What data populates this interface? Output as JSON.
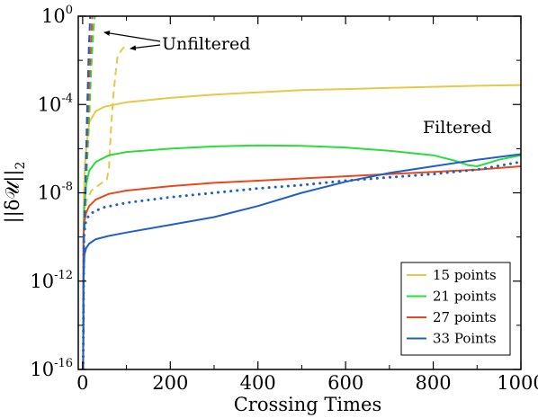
{
  "chart_data": {
    "type": "line",
    "xlabel": "Crossing Times",
    "ylabel": "||δ𝒰||",
    "ylabel_subscript": "2",
    "xlim": [
      -10,
      1000
    ],
    "ylim_log10": [
      -16,
      0
    ],
    "y_scale": "log",
    "x_ticks": [
      {
        "value": 0,
        "label": "0"
      },
      {
        "value": 200,
        "label": "200"
      },
      {
        "value": 400,
        "label": "400"
      },
      {
        "value": 600,
        "label": "600"
      },
      {
        "value": 800,
        "label": "800"
      },
      {
        "value": 1000,
        "label": "1000"
      }
    ],
    "y_ticks": [
      {
        "log10": 0,
        "base": "10",
        "exp": "0"
      },
      {
        "log10": -4,
        "base": "10",
        "exp": "-4"
      },
      {
        "log10": -8,
        "base": "10",
        "exp": "-8"
      },
      {
        "log10": -12,
        "base": "10",
        "exp": "-12"
      },
      {
        "log10": -16,
        "base": "10",
        "exp": "-16"
      }
    ],
    "legend_position": "bottom-right",
    "annotations": [
      {
        "text": "Unfiltered",
        "x": 180,
        "log10y": -1.2
      },
      {
        "text": "Filtered",
        "x": 800,
        "log10y": -5.4
      }
    ],
    "series": [
      {
        "name": "15 points",
        "color": "#e6c84a",
        "style": "solid",
        "points": [
          [
            1,
            -16
          ],
          [
            2,
            -10
          ],
          [
            3,
            -8.2
          ],
          [
            5,
            -6.8
          ],
          [
            8,
            -6.0
          ],
          [
            15,
            -4.8
          ],
          [
            30,
            -4.3
          ],
          [
            50,
            -4.1
          ],
          [
            100,
            -3.9
          ],
          [
            200,
            -3.7
          ],
          [
            300,
            -3.55
          ],
          [
            400,
            -3.45
          ],
          [
            500,
            -3.35
          ],
          [
            600,
            -3.3
          ],
          [
            700,
            -3.25
          ],
          [
            800,
            -3.2
          ],
          [
            900,
            -3.15
          ],
          [
            1000,
            -3.12
          ]
        ]
      },
      {
        "name": "15 points unfiltered",
        "color": "#e6c84a",
        "style": "dashed",
        "points": [
          [
            1,
            -16
          ],
          [
            3,
            -10
          ],
          [
            8,
            -8.4
          ],
          [
            20,
            -7.9
          ],
          [
            40,
            -7.6
          ],
          [
            55,
            -7.4
          ],
          [
            60,
            -6.9
          ],
          [
            65,
            -5.0
          ],
          [
            70,
            -3.6
          ],
          [
            75,
            -2.6
          ],
          [
            80,
            -1.8
          ],
          [
            90,
            -1.5
          ],
          [
            100,
            -1.3
          ]
        ]
      },
      {
        "name": "21 points",
        "color": "#2bdc3b",
        "style": "solid",
        "points": [
          [
            1,
            -16
          ],
          [
            2,
            -10
          ],
          [
            4,
            -8.6
          ],
          [
            8,
            -7.6
          ],
          [
            15,
            -7.0
          ],
          [
            30,
            -6.6
          ],
          [
            60,
            -6.3
          ],
          [
            100,
            -6.15
          ],
          [
            200,
            -6.0
          ],
          [
            300,
            -5.9
          ],
          [
            400,
            -5.85
          ],
          [
            500,
            -5.87
          ],
          [
            600,
            -5.95
          ],
          [
            700,
            -6.1
          ],
          [
            800,
            -6.3
          ],
          [
            850,
            -6.55
          ],
          [
            880,
            -6.75
          ],
          [
            900,
            -6.8
          ],
          [
            950,
            -6.5
          ],
          [
            1000,
            -6.3
          ]
        ]
      },
      {
        "name": "21 points unfiltered",
        "color": "#2bdc3b",
        "style": "dashed",
        "points": [
          [
            1,
            -16
          ],
          [
            3,
            -9.5
          ],
          [
            8,
            -7.6
          ],
          [
            15,
            -4.5
          ],
          [
            20,
            -2.2
          ],
          [
            25,
            -0.5
          ],
          [
            28,
            0
          ]
        ]
      },
      {
        "name": "27 points",
        "color": "#e8491c",
        "style": "solid",
        "points": [
          [
            1,
            -16
          ],
          [
            2,
            -10
          ],
          [
            4,
            -9.3
          ],
          [
            8,
            -8.9
          ],
          [
            15,
            -8.6
          ],
          [
            30,
            -8.3
          ],
          [
            60,
            -8.05
          ],
          [
            100,
            -7.9
          ],
          [
            200,
            -7.7
          ],
          [
            300,
            -7.55
          ],
          [
            400,
            -7.45
          ],
          [
            500,
            -7.35
          ],
          [
            600,
            -7.25
          ],
          [
            700,
            -7.15
          ],
          [
            800,
            -7.05
          ],
          [
            900,
            -6.95
          ],
          [
            1000,
            -6.8
          ]
        ]
      },
      {
        "name": "27 points unfiltered",
        "color": "#e8491c",
        "style": "dashed",
        "points": [
          [
            1,
            -16
          ],
          [
            3,
            -10
          ],
          [
            6,
            -8
          ],
          [
            12,
            -4.5
          ],
          [
            18,
            -1.5
          ],
          [
            22,
            0
          ]
        ]
      },
      {
        "name": "33 Points",
        "color": "#1f5fc6",
        "style": "solid",
        "points": [
          [
            1,
            -16
          ],
          [
            2,
            -12
          ],
          [
            4,
            -10.8
          ],
          [
            8,
            -10.5
          ],
          [
            15,
            -10.3
          ],
          [
            30,
            -10.1
          ],
          [
            60,
            -9.95
          ],
          [
            100,
            -9.8
          ],
          [
            200,
            -9.45
          ],
          [
            300,
            -9.1
          ],
          [
            400,
            -8.6
          ],
          [
            500,
            -8.0
          ],
          [
            600,
            -7.5
          ],
          [
            700,
            -7.1
          ],
          [
            800,
            -6.8
          ],
          [
            900,
            -6.5
          ],
          [
            1000,
            -6.25
          ]
        ]
      },
      {
        "name": "33 Points filtered dotted",
        "color": "#1f5fc6",
        "style": "dotted",
        "points": [
          [
            1,
            -16
          ],
          [
            3,
            -10
          ],
          [
            6,
            -9.4
          ],
          [
            12,
            -9.1
          ],
          [
            25,
            -8.85
          ],
          [
            50,
            -8.65
          ],
          [
            100,
            -8.45
          ],
          [
            200,
            -8.2
          ],
          [
            300,
            -8.0
          ],
          [
            400,
            -7.8
          ],
          [
            500,
            -7.65
          ],
          [
            600,
            -7.45
          ],
          [
            700,
            -7.3
          ],
          [
            800,
            -7.15
          ],
          [
            900,
            -6.95
          ],
          [
            1000,
            -6.6
          ]
        ]
      },
      {
        "name": "33 Points unfiltered",
        "color": "#1f5fc6",
        "style": "dashed",
        "points": [
          [
            1,
            -16
          ],
          [
            3,
            -10
          ],
          [
            6,
            -8
          ],
          [
            10,
            -4.5
          ],
          [
            14,
            -1.5
          ],
          [
            17,
            0
          ]
        ]
      }
    ],
    "legend": [
      {
        "label": "15 points",
        "color": "#e6c84a"
      },
      {
        "label": "21 points",
        "color": "#2bdc3b"
      },
      {
        "label": "27 points",
        "color": "#e8491c"
      },
      {
        "label": "33 Points",
        "color": "#1f5fc6"
      }
    ]
  }
}
